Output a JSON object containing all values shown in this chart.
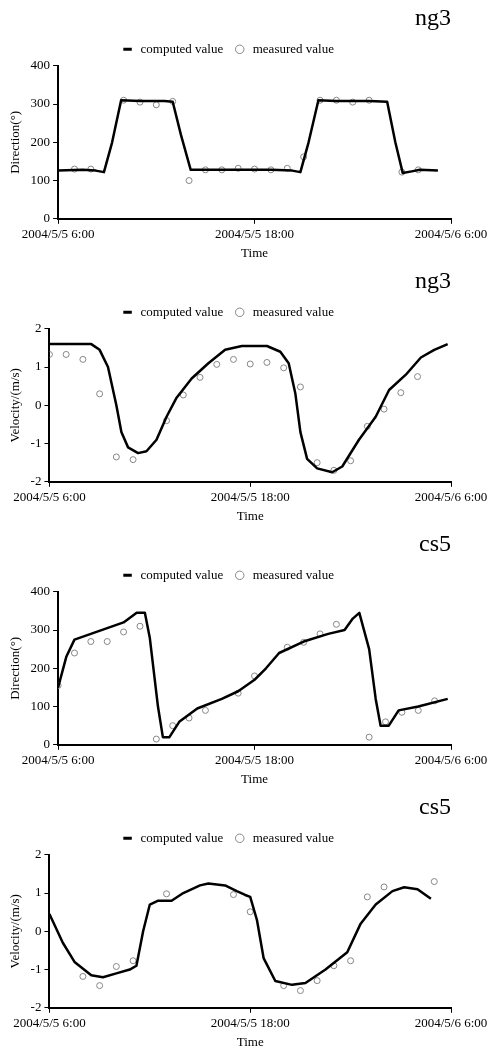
{
  "chart_data": [
    {
      "type": "line",
      "title": "ng3",
      "xlabel": "Time",
      "ylabel": "Direction(°)",
      "xlim": [
        "2004-05-05T06:00",
        "2004-05-06T06:00"
      ],
      "xticks": [
        {
          "value": "2004-05-05T06:00",
          "label": "2004/5/5 6:00"
        },
        {
          "value": "2004-05-05T18:00",
          "label": "2004/5/5 18:00"
        },
        {
          "value": "2004-05-06T06:00",
          "label": "2004/5/6 6:00"
        }
      ],
      "ylim": [
        0,
        400
      ],
      "yticks": [
        0,
        100,
        200,
        300,
        400
      ],
      "legend": "top",
      "series": [
        {
          "name": "computed value",
          "marker": "none",
          "color": "#000000",
          "x": [
            "2004-05-05T06:00",
            "2004-05-05T07:30",
            "2004-05-05T08:18",
            "2004-05-05T08:48",
            "2004-05-05T09:18",
            "2004-05-05T09:51",
            "2004-05-05T11:00",
            "2004-05-05T12:30",
            "2004-05-05T13:00",
            "2004-05-05T13:30",
            "2004-05-05T14:06",
            "2004-05-05T15:00",
            "2004-05-05T17:00",
            "2004-05-05T19:00",
            "2004-05-05T20:18",
            "2004-05-05T20:48",
            "2004-05-05T21:18",
            "2004-05-05T21:54",
            "2004-05-05T23:00",
            "2004-05-06T01:00",
            "2004-05-06T02:06",
            "2004-05-06T02:36",
            "2004-05-06T03:03",
            "2004-05-06T03:36",
            "2004-05-06T04:06",
            "2004-05-06T05:12"
          ],
          "values": [
            126,
            128,
            126,
            122,
            200,
            310,
            308,
            308,
            306,
            220,
            128,
            128,
            128,
            128,
            126,
            122,
            200,
            310,
            308,
            308,
            306,
            200,
            120,
            124,
            128,
            126
          ]
        },
        {
          "name": "measured value",
          "type": "scatter",
          "marker": "circle",
          "color": "#888888",
          "x": [
            "2004-05-05T07:00",
            "2004-05-05T08:00",
            "2004-05-05T10:00",
            "2004-05-05T11:00",
            "2004-05-05T12:00",
            "2004-05-05T13:00",
            "2004-05-05T14:00",
            "2004-05-05T15:00",
            "2004-05-05T16:00",
            "2004-05-05T17:00",
            "2004-05-05T18:00",
            "2004-05-05T19:00",
            "2004-05-05T20:00",
            "2004-05-05T21:00",
            "2004-05-05T22:00",
            "2004-05-05T23:00",
            "2004-05-06T00:00",
            "2004-05-06T01:00",
            "2004-05-06T03:00",
            "2004-05-06T04:00"
          ],
          "values": [
            130,
            130,
            310,
            305,
            298,
            307,
            100,
            128,
            128,
            132,
            130,
            128,
            132,
            162,
            310,
            310,
            305,
            310,
            122,
            128
          ]
        }
      ]
    },
    {
      "type": "line",
      "title": "ng3",
      "xlabel": "Time",
      "ylabel": "Velocity/(m/s)",
      "xlim": [
        "2004-05-05T06:00",
        "2004-05-06T06:00"
      ],
      "xticks": [
        {
          "value": "2004-05-05T06:00",
          "label": "2004/5/5 6:00"
        },
        {
          "value": "2004-05-05T18:00",
          "label": "2004/5/5 18:00"
        },
        {
          "value": "2004-05-06T06:00",
          "label": "2004/5/6 6:00"
        }
      ],
      "ylim": [
        -2,
        2
      ],
      "yticks": [
        -2,
        -1,
        0,
        1,
        2
      ],
      "legend": "top",
      "series": [
        {
          "name": "computed value",
          "marker": "none",
          "color": "#000000",
          "x": [
            "2004-05-05T06:00",
            "2004-05-05T07:30",
            "2004-05-05T08:30",
            "2004-05-05T09:00",
            "2004-05-05T09:30",
            "2004-05-05T10:00",
            "2004-05-05T10:18",
            "2004-05-05T10:42",
            "2004-05-05T11:18",
            "2004-05-05T11:48",
            "2004-05-05T12:24",
            "2004-05-05T13:00",
            "2004-05-05T13:36",
            "2004-05-05T14:30",
            "2004-05-05T15:30",
            "2004-05-05T16:30",
            "2004-05-05T17:30",
            "2004-05-05T19:00",
            "2004-05-05T19:48",
            "2004-05-05T20:18",
            "2004-05-05T20:42",
            "2004-05-05T21:00",
            "2004-05-05T21:24",
            "2004-05-05T22:00",
            "2004-05-05T22:54",
            "2004-05-05T23:30",
            "2004-05-06T00:30",
            "2004-05-06T01:30",
            "2004-05-06T02:18",
            "2004-05-06T03:18",
            "2004-05-06T04:12",
            "2004-05-06T05:00",
            "2004-05-06T05:48"
          ],
          "values": [
            1.6,
            1.6,
            1.6,
            1.45,
            1.0,
            0,
            -0.7,
            -1.1,
            -1.25,
            -1.2,
            -0.9,
            -0.3,
            0.2,
            0.7,
            1.1,
            1.45,
            1.55,
            1.55,
            1.4,
            1.1,
            0.3,
            -0.7,
            -1.4,
            -1.65,
            -1.75,
            -1.6,
            -0.9,
            -0.3,
            0.4,
            0.8,
            1.25,
            1.45,
            1.6
          ]
        },
        {
          "name": "measured value",
          "type": "scatter",
          "marker": "circle",
          "color": "#888888",
          "x": [
            "2004-05-05T06:00",
            "2004-05-05T07:00",
            "2004-05-05T08:00",
            "2004-05-05T09:00",
            "2004-05-05T10:00",
            "2004-05-05T11:00",
            "2004-05-05T13:00",
            "2004-05-05T14:00",
            "2004-05-05T15:00",
            "2004-05-05T16:00",
            "2004-05-05T17:00",
            "2004-05-05T18:00",
            "2004-05-05T19:00",
            "2004-05-05T20:00",
            "2004-05-05T21:00",
            "2004-05-05T22:00",
            "2004-05-05T23:00",
            "2004-05-06T00:00",
            "2004-05-06T01:00",
            "2004-05-06T02:00",
            "2004-05-06T03:00",
            "2004-05-06T04:00"
          ],
          "values": [
            1.33,
            1.33,
            1.2,
            0.3,
            -1.35,
            -1.42,
            -0.4,
            0.27,
            0.73,
            1.07,
            1.2,
            1.08,
            1.12,
            0.98,
            0.48,
            -1.5,
            -1.7,
            -1.45,
            -0.55,
            -0.1,
            0.33,
            0.75
          ]
        }
      ]
    },
    {
      "type": "line",
      "title": "cs5",
      "xlabel": "Time",
      "ylabel": "Direction(°)",
      "xlim": [
        "2004-05-05T06:00",
        "2004-05-06T06:00"
      ],
      "xticks": [
        {
          "value": "2004-05-05T06:00",
          "label": "2004/5/5 6:00"
        },
        {
          "value": "2004-05-05T18:00",
          "label": "2004/5/5 18:00"
        },
        {
          "value": "2004-05-06T06:00",
          "label": "2004/5/6 6:00"
        }
      ],
      "ylim": [
        0,
        400
      ],
      "yticks": [
        0,
        100,
        200,
        300,
        400
      ],
      "legend": "top",
      "series": [
        {
          "name": "computed value",
          "marker": "none",
          "color": "#000000",
          "x": [
            "2004-05-05T06:00",
            "2004-05-05T06:30",
            "2004-05-05T07:00",
            "2004-05-05T08:00",
            "2004-05-05T09:00",
            "2004-05-05T10:00",
            "2004-05-05T10:48",
            "2004-05-05T11:18",
            "2004-05-05T11:36",
            "2004-05-05T12:06",
            "2004-05-05T12:24",
            "2004-05-05T12:48",
            "2004-05-05T13:24",
            "2004-05-05T14:30",
            "2004-05-05T16:00",
            "2004-05-05T17:00",
            "2004-05-05T18:00",
            "2004-05-05T18:42",
            "2004-05-05T19:30",
            "2004-05-05T21:00",
            "2004-05-05T22:30",
            "2004-05-05T23:30",
            "2004-05-06T00:00",
            "2004-05-06T00:24",
            "2004-05-06T01:00",
            "2004-05-06T01:24",
            "2004-05-06T01:42",
            "2004-05-06T02:12",
            "2004-05-06T02:48",
            "2004-05-06T04:00",
            "2004-05-06T05:48"
          ],
          "values": [
            150,
            230,
            275,
            290,
            305,
            320,
            345,
            345,
            280,
            100,
            20,
            20,
            60,
            95,
            120,
            140,
            170,
            200,
            240,
            270,
            290,
            300,
            330,
            345,
            250,
            120,
            50,
            50,
            90,
            100,
            120
          ]
        },
        {
          "name": "measured value",
          "type": "scatter",
          "marker": "circle",
          "color": "#888888",
          "x": [
            "2004-05-05T06:00",
            "2004-05-05T07:00",
            "2004-05-05T08:00",
            "2004-05-05T09:00",
            "2004-05-05T10:00",
            "2004-05-05T11:00",
            "2004-05-05T12:00",
            "2004-05-05T13:00",
            "2004-05-05T14:00",
            "2004-05-05T15:00",
            "2004-05-05T17:00",
            "2004-05-05T18:00",
            "2004-05-05T20:00",
            "2004-05-05T21:00",
            "2004-05-05T22:00",
            "2004-05-05T23:00",
            "2004-05-06T01:00",
            "2004-05-06T02:00",
            "2004-05-06T03:00",
            "2004-05-06T04:00",
            "2004-05-06T05:00"
          ],
          "values": [
            155,
            240,
            270,
            270,
            295,
            310,
            15,
            50,
            70,
            90,
            135,
            180,
            255,
            268,
            290,
            315,
            20,
            60,
            85,
            90,
            115
          ]
        }
      ]
    },
    {
      "type": "line",
      "title": "cs5",
      "xlabel": "Time",
      "ylabel": "Velocity/(m/s)",
      "xlim": [
        "2004-05-05T06:00",
        "2004-05-06T06:00"
      ],
      "xticks": [
        {
          "value": "2004-05-05T06:00",
          "label": "2004/5/5 6:00"
        },
        {
          "value": "2004-05-05T18:00",
          "label": "2004/5/5 18:00"
        },
        {
          "value": "2004-05-06T06:00",
          "label": "2004/5/6 6:00"
        }
      ],
      "ylim": [
        -2,
        2
      ],
      "yticks": [
        -2,
        -1,
        0,
        1,
        2
      ],
      "legend": "top",
      "series": [
        {
          "name": "computed value",
          "marker": "none",
          "color": "#000000",
          "x": [
            "2004-05-05T06:00",
            "2004-05-05T06:48",
            "2004-05-05T07:30",
            "2004-05-05T08:30",
            "2004-05-05T09:12",
            "2004-05-05T10:00",
            "2004-05-05T10:48",
            "2004-05-05T11:12",
            "2004-05-05T11:36",
            "2004-05-05T12:00",
            "2004-05-05T12:30",
            "2004-05-05T13:18",
            "2004-05-05T14:00",
            "2004-05-05T15:00",
            "2004-05-05T15:30",
            "2004-05-05T16:30",
            "2004-05-05T17:12",
            "2004-05-05T17:42",
            "2004-05-05T18:00",
            "2004-05-05T18:24",
            "2004-05-05T18:48",
            "2004-05-05T19:30",
            "2004-05-05T20:30",
            "2004-05-05T21:18",
            "2004-05-05T22:30",
            "2004-05-05T23:48",
            "2004-05-06T00:36",
            "2004-05-06T01:30",
            "2004-05-06T02:30",
            "2004-05-06T03:12",
            "2004-05-06T04:00",
            "2004-05-06T04:48"
          ],
          "values": [
            0.45,
            -0.3,
            -0.8,
            -1.15,
            -1.2,
            -1.1,
            -1.0,
            -0.9,
            0,
            0.7,
            0.8,
            0.8,
            1.0,
            1.2,
            1.25,
            1.2,
            1.05,
            0.95,
            0.9,
            0.3,
            -0.7,
            -1.3,
            -1.4,
            -1.35,
            -1.0,
            -0.55,
            0.2,
            0.7,
            1.05,
            1.15,
            1.1,
            0.85
          ]
        },
        {
          "name": "measured value",
          "type": "scatter",
          "marker": "circle",
          "color": "#888888",
          "x": [
            "2004-05-05T08:00",
            "2004-05-05T09:00",
            "2004-05-05T10:00",
            "2004-05-05T11:00",
            "2004-05-05T13:00",
            "2004-05-05T17:00",
            "2004-05-05T18:00",
            "2004-05-05T20:00",
            "2004-05-05T21:00",
            "2004-05-05T22:00",
            "2004-05-05T23:00",
            "2004-05-06T00:00",
            "2004-05-06T01:00",
            "2004-05-06T02:00",
            "2004-05-06T05:00"
          ],
          "values": [
            -1.18,
            -1.42,
            -0.92,
            -0.77,
            0.98,
            0.96,
            0.51,
            -1.42,
            -1.55,
            -1.29,
            -0.9,
            -0.77,
            0.9,
            1.16,
            1.3
          ]
        }
      ]
    }
  ]
}
